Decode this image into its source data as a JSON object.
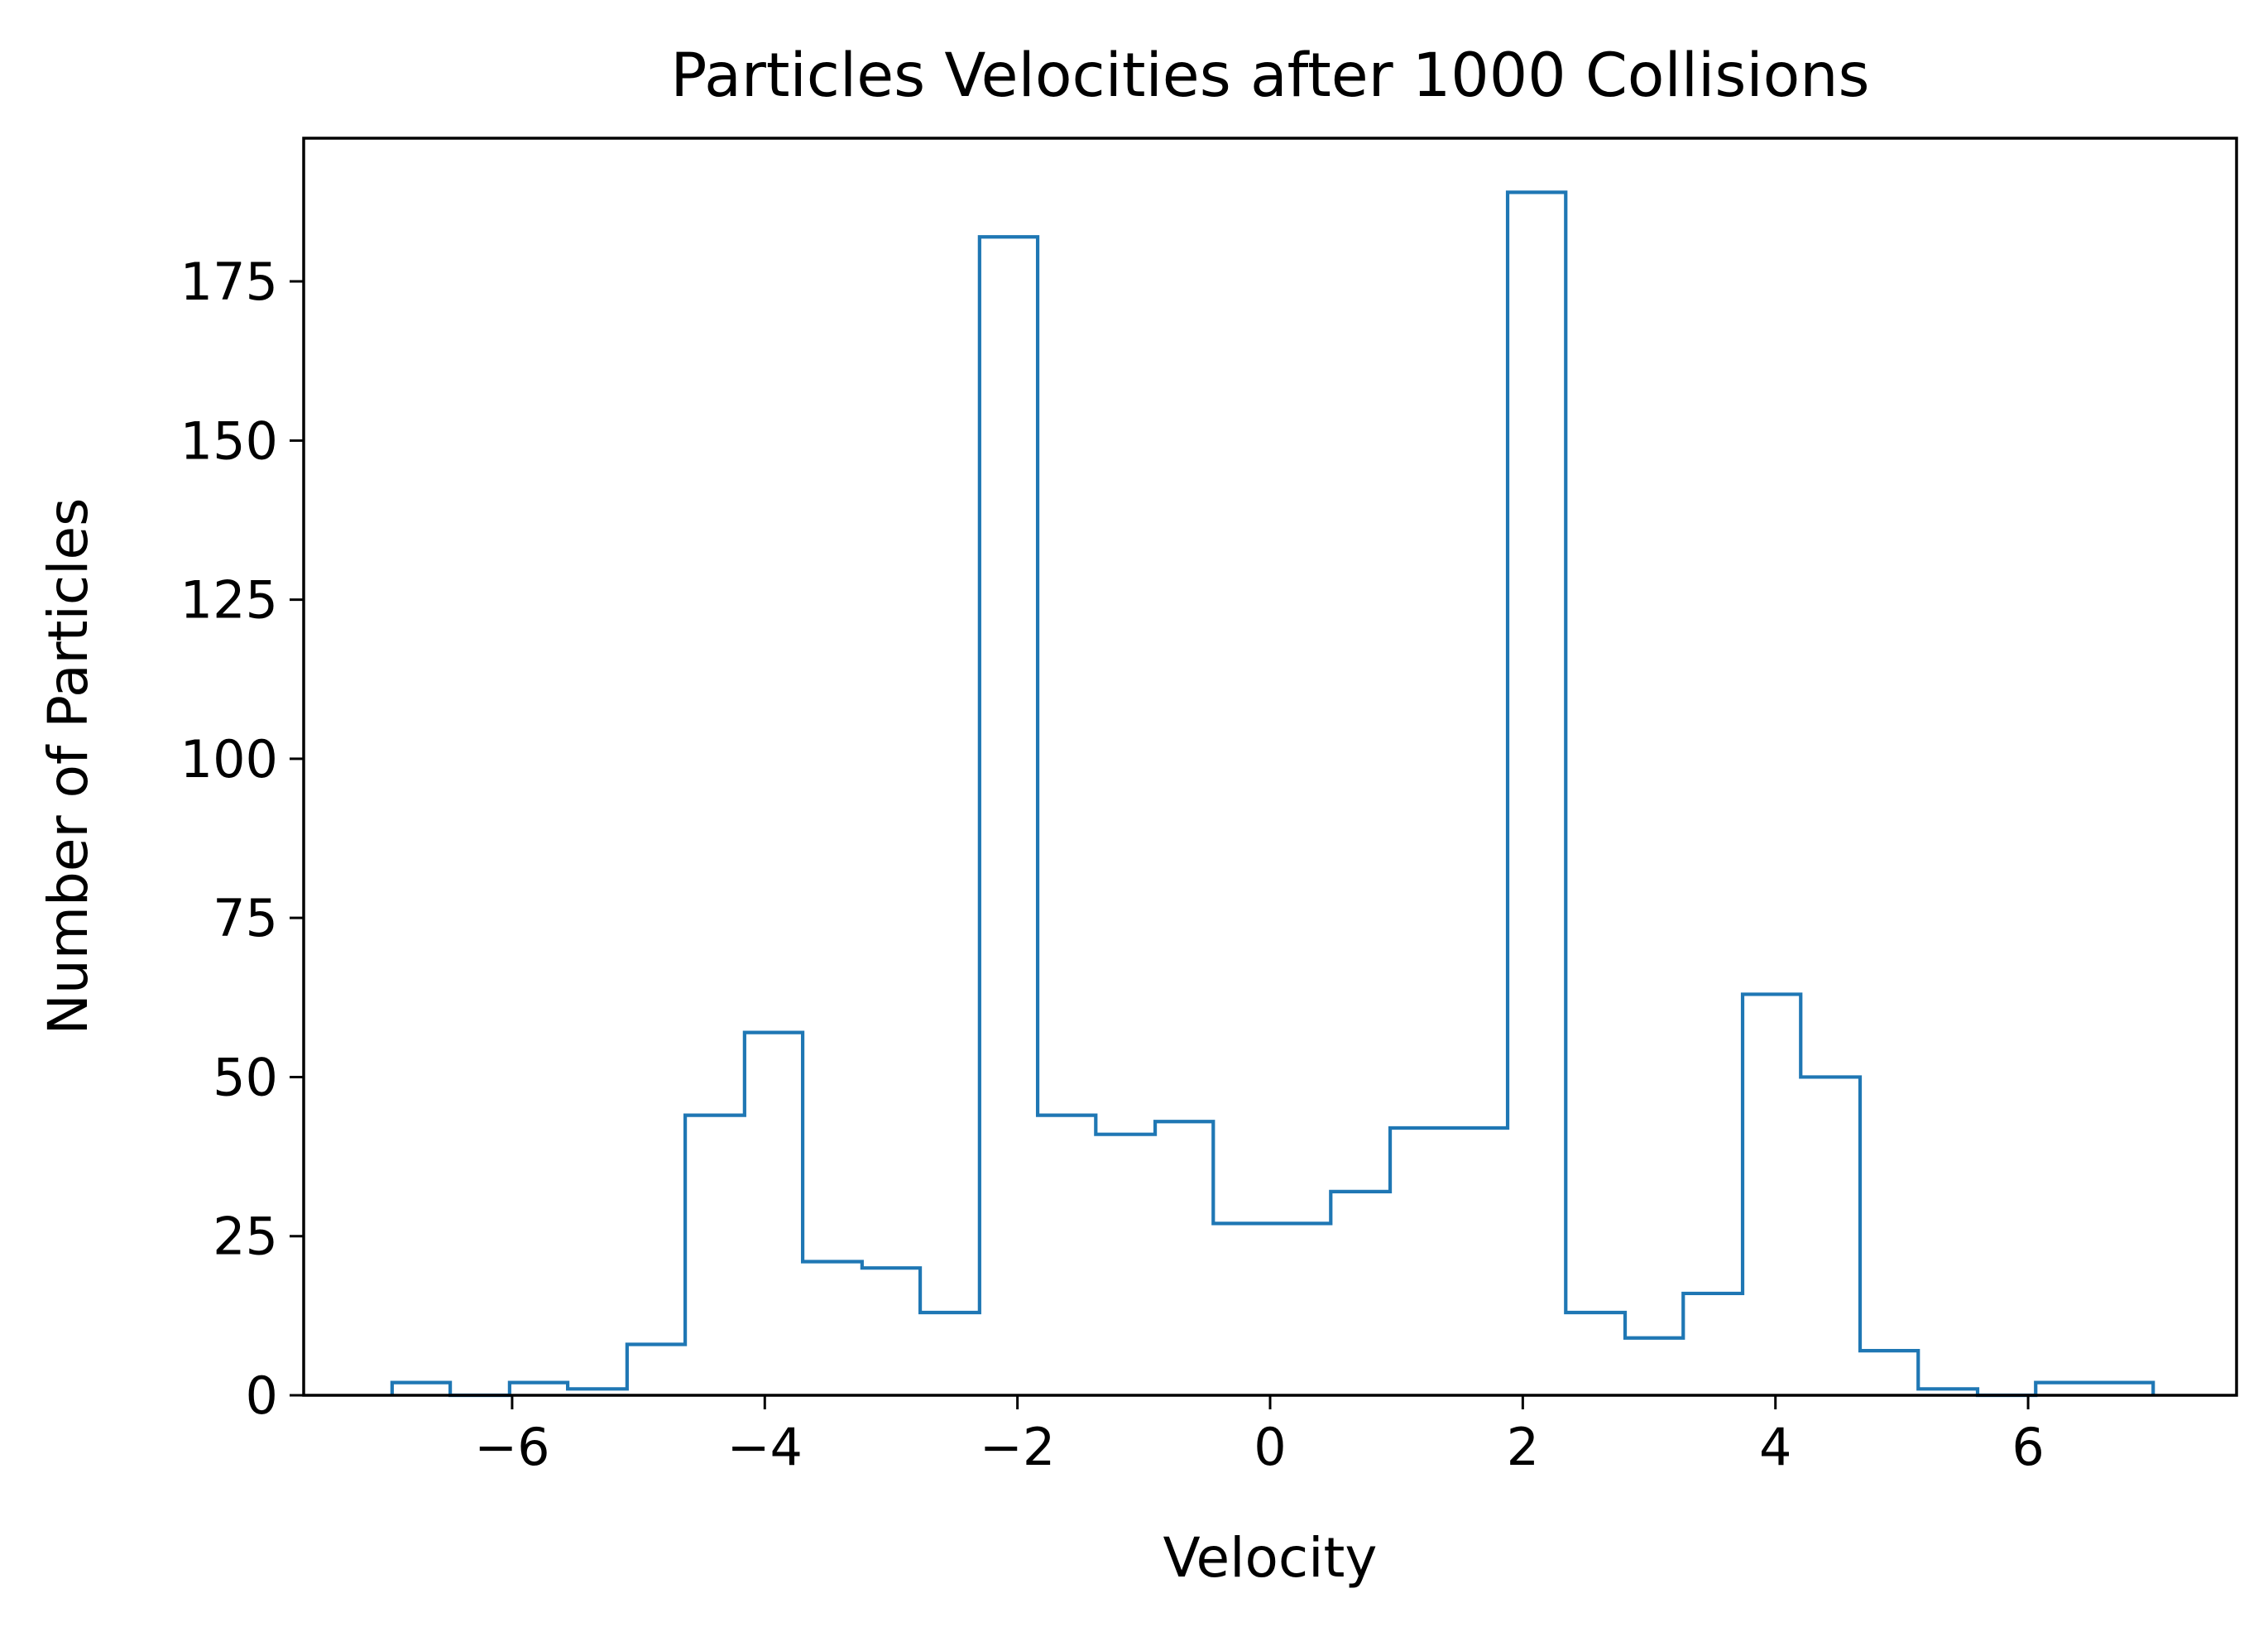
{
  "chart_data": {
    "type": "histogram",
    "title": "Particles Velocities after 1000 Collisions",
    "xlabel": "Velocity",
    "ylabel": "Number of Particles",
    "xlim": [
      -7.65,
      7.65
    ],
    "ylim": [
      0,
      197.5
    ],
    "xticks": [
      -6,
      -4,
      -2,
      0,
      2,
      4,
      6
    ],
    "xtick_labels": [
      "−6",
      "−4",
      "−2",
      "0",
      "2",
      "4",
      "6"
    ],
    "yticks": [
      0,
      25,
      50,
      75,
      100,
      125,
      150,
      175
    ],
    "ytick_labels": [
      "0",
      "25",
      "50",
      "75",
      "100",
      "125",
      "150",
      "175"
    ],
    "grid": false,
    "histtype": "step",
    "bin_edges": [
      -6.95,
      -6.49,
      -6.02,
      -5.56,
      -5.09,
      -4.63,
      -4.16,
      -3.7,
      -3.23,
      -2.77,
      -2.3,
      -1.84,
      -1.38,
      -0.91,
      -0.45,
      0.02,
      0.48,
      0.95,
      1.41,
      1.88,
      2.34,
      2.81,
      3.27,
      3.74,
      4.2,
      4.67,
      5.13,
      5.6,
      6.06,
      6.53,
      6.99
    ],
    "counts": [
      2,
      0,
      2,
      1,
      8,
      44,
      57,
      21,
      20,
      13,
      182,
      44,
      41,
      43,
      27,
      27,
      32,
      42,
      42,
      189,
      13,
      9,
      16,
      63,
      50,
      7,
      1,
      0,
      2,
      2
    ],
    "colors": {
      "series": "#1f77b4",
      "axes": "#000000"
    }
  }
}
